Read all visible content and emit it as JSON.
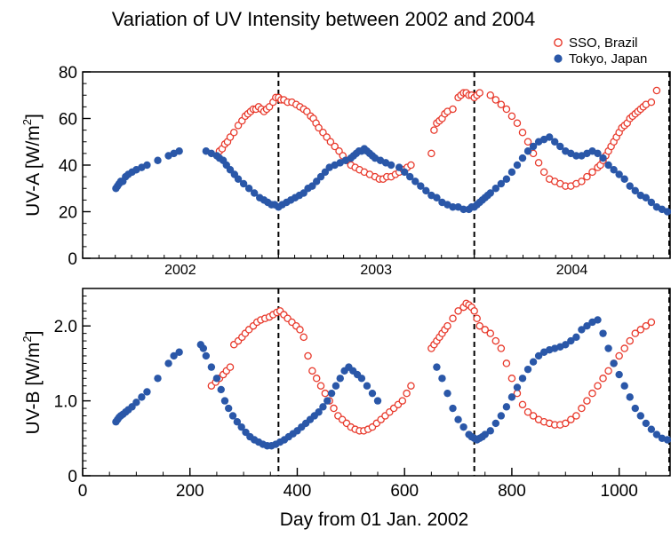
{
  "chart_data": [
    {
      "type": "scatter",
      "title": "Variation of UV Intensity between 2002 and 2004",
      "xlabel": "",
      "ylabel": "UV-A [W/m²]",
      "ylabel_main": "UV-A [W/m",
      "ylabel_sup": "2",
      "ylabel_end": "]",
      "xlim": [
        0,
        1095
      ],
      "ylim": [
        0,
        80
      ],
      "yticks": [
        "0",
        "20",
        "40",
        "60",
        "80"
      ],
      "year_labels": [
        {
          "label": "2002",
          "x": 182
        },
        {
          "label": "2003",
          "x": 547
        },
        {
          "label": "2004",
          "x": 912
        }
      ],
      "vlines": [
        365,
        730
      ],
      "legend": {
        "position": "top-right"
      },
      "grid": false,
      "series": [
        {
          "name": "SSO, Brazil",
          "marker": "open-circle",
          "color": "#e8392b",
          "x": [
            255,
            260,
            265,
            270,
            275,
            282,
            290,
            297,
            303,
            308,
            313,
            318,
            323,
            328,
            333,
            338,
            343,
            348,
            355,
            360,
            365,
            370,
            375,
            382,
            390,
            398,
            405,
            412,
            418,
            425,
            430,
            435,
            440,
            448,
            455,
            462,
            470,
            478,
            485,
            493,
            500,
            508,
            516,
            525,
            535,
            545,
            553,
            560,
            567,
            575,
            583,
            590,
            598,
            605,
            612,
            650,
            655,
            660,
            665,
            670,
            675,
            680,
            690,
            700,
            705,
            710,
            715,
            720,
            725,
            730,
            735,
            740,
            760,
            770,
            780,
            790,
            800,
            810,
            820,
            830,
            840,
            850,
            860,
            870,
            880,
            890,
            900,
            910,
            920,
            930,
            940,
            950,
            960,
            965,
            970,
            975,
            980,
            985,
            990,
            995,
            1000,
            1005,
            1010,
            1015,
            1020,
            1025,
            1030,
            1035,
            1040,
            1045,
            1050,
            1060,
            1070
          ],
          "y": [
            46,
            47,
            49,
            50,
            52,
            54,
            57,
            59,
            61,
            62,
            63,
            64,
            64,
            65,
            64,
            63,
            64,
            65,
            67,
            69,
            69,
            68,
            68,
            67,
            67,
            66,
            65,
            64,
            63,
            61,
            60,
            58,
            56,
            54,
            52,
            50,
            48,
            46,
            44,
            42,
            40,
            39,
            38,
            37,
            36,
            35,
            34,
            34,
            35,
            35,
            36,
            37,
            38,
            39,
            40,
            45,
            55,
            58,
            59,
            60,
            62,
            63,
            64,
            69,
            70,
            71,
            71,
            70,
            70,
            69,
            70,
            71,
            70,
            68,
            66,
            64,
            61,
            58,
            54,
            50,
            45,
            41,
            37,
            34,
            33,
            32,
            31,
            31,
            32,
            33,
            35,
            37,
            39,
            40,
            42,
            44,
            46,
            48,
            50,
            52,
            54,
            56,
            57,
            58,
            60,
            61,
            62,
            63,
            64,
            65,
            66,
            67,
            72
          ]
        },
        {
          "name": "Tokyo, Japan",
          "marker": "filled-circle",
          "color": "#2a57a8",
          "x": [
            62,
            65,
            68,
            71,
            75,
            80,
            85,
            92,
            100,
            110,
            120,
            140,
            160,
            170,
            180,
            230,
            240,
            250,
            255,
            262,
            268,
            275,
            283,
            290,
            300,
            310,
            320,
            330,
            338,
            345,
            352,
            358,
            365,
            372,
            380,
            388,
            396,
            404,
            412,
            420,
            428,
            436,
            444,
            452,
            460,
            470,
            480,
            490,
            500,
            505,
            510,
            515,
            520,
            525,
            530,
            535,
            540,
            545,
            555,
            565,
            575,
            590,
            600,
            610,
            620,
            630,
            640,
            650,
            660,
            670,
            680,
            690,
            700,
            710,
            720,
            725,
            730,
            735,
            740,
            745,
            750,
            755,
            760,
            770,
            780,
            790,
            800,
            810,
            820,
            830,
            840,
            850,
            860,
            870,
            880,
            890,
            900,
            910,
            920,
            930,
            940,
            950,
            960,
            970,
            980,
            990,
            1000,
            1010,
            1020,
            1030,
            1040,
            1050,
            1060,
            1070,
            1080,
            1090
          ],
          "y": [
            30,
            31,
            32,
            33,
            33,
            35,
            36,
            37,
            38,
            39,
            40,
            42,
            44,
            45,
            46,
            46,
            45,
            44,
            43,
            42,
            40,
            38,
            36,
            34,
            32,
            30,
            28,
            26,
            25,
            24,
            23,
            23,
            22,
            23,
            24,
            25,
            26,
            27,
            28,
            30,
            31,
            33,
            35,
            37,
            39,
            40,
            41,
            42,
            43,
            44,
            45,
            46,
            46,
            47,
            46,
            45,
            44,
            43,
            42,
            41,
            40,
            39,
            37,
            35,
            33,
            31,
            29,
            27,
            26,
            24,
            23,
            22,
            22,
            21,
            21,
            22,
            22,
            23,
            24,
            25,
            26,
            27,
            28,
            30,
            32,
            34,
            37,
            40,
            43,
            46,
            48,
            50,
            51,
            52,
            50,
            48,
            46,
            45,
            44,
            44,
            45,
            46,
            45,
            43,
            40,
            38,
            36,
            34,
            31,
            29,
            27,
            26,
            24,
            22,
            21,
            20
          ]
        }
      ]
    },
    {
      "type": "scatter",
      "title": "",
      "xlabel": "Day from 01 Jan. 2002",
      "ylabel": "UV-B [W/m²]",
      "ylabel_main": "UV-B [W/m",
      "ylabel_sup": "2",
      "ylabel_end": "]",
      "xlim": [
        0,
        1095
      ],
      "ylim": [
        0,
        2.5
      ],
      "yticks": [
        "0",
        "1.0",
        "2.0"
      ],
      "xticks": [
        "0",
        "200",
        "400",
        "600",
        "800",
        "1000"
      ],
      "vlines": [
        365,
        730
      ],
      "grid": false,
      "series": [
        {
          "name": "SSO, Brazil",
          "marker": "open-circle",
          "color": "#e8392b",
          "x": [
            240,
            248,
            255,
            262,
            268,
            275,
            282,
            290,
            297,
            303,
            310,
            318,
            325,
            332,
            340,
            348,
            355,
            362,
            368,
            375,
            382,
            390,
            398,
            405,
            412,
            420,
            428,
            436,
            444,
            452,
            460,
            468,
            476,
            484,
            492,
            500,
            508,
            516,
            524,
            532,
            540,
            548,
            556,
            564,
            572,
            580,
            588,
            596,
            604,
            612,
            650,
            655,
            660,
            665,
            670,
            675,
            680,
            690,
            700,
            710,
            715,
            720,
            725,
            730,
            735,
            740,
            750,
            760,
            770,
            780,
            790,
            800,
            810,
            820,
            830,
            840,
            850,
            860,
            870,
            880,
            890,
            900,
            910,
            920,
            930,
            940,
            950,
            960,
            970,
            980,
            990,
            1000,
            1010,
            1020,
            1030,
            1040,
            1050,
            1060
          ],
          "y": [
            1.2,
            1.25,
            1.3,
            1.35,
            1.4,
            1.45,
            1.75,
            1.8,
            1.85,
            1.9,
            1.95,
            2.0,
            2.05,
            2.08,
            2.1,
            2.12,
            2.15,
            2.18,
            2.2,
            2.15,
            2.1,
            2.05,
            2.0,
            1.95,
            1.85,
            1.6,
            1.4,
            1.3,
            1.2,
            1.1,
            1.0,
            0.9,
            0.8,
            0.75,
            0.7,
            0.65,
            0.62,
            0.6,
            0.6,
            0.62,
            0.65,
            0.7,
            0.75,
            0.8,
            0.85,
            0.9,
            0.95,
            1.0,
            1.1,
            1.2,
            1.7,
            1.75,
            1.8,
            1.85,
            1.9,
            1.95,
            2.0,
            2.1,
            2.2,
            2.25,
            2.3,
            2.28,
            2.25,
            2.2,
            2.1,
            2.0,
            1.95,
            1.9,
            1.8,
            1.7,
            1.5,
            1.3,
            1.1,
            0.95,
            0.85,
            0.8,
            0.75,
            0.72,
            0.7,
            0.68,
            0.68,
            0.7,
            0.75,
            0.8,
            0.9,
            1.0,
            1.1,
            1.2,
            1.3,
            1.4,
            1.5,
            1.6,
            1.7,
            1.8,
            1.9,
            1.95,
            2.0,
            2.05
          ]
        },
        {
          "name": "Tokyo, Japan",
          "marker": "filled-circle",
          "color": "#2a57a8",
          "x": [
            62,
            65,
            68,
            71,
            75,
            80,
            85,
            92,
            100,
            110,
            120,
            140,
            160,
            170,
            180,
            220,
            225,
            230,
            240,
            250,
            258,
            265,
            272,
            280,
            288,
            296,
            304,
            312,
            320,
            328,
            336,
            344,
            352,
            360,
            368,
            376,
            384,
            392,
            400,
            408,
            416,
            424,
            432,
            440,
            448,
            456,
            464,
            472,
            480,
            488,
            496,
            504,
            512,
            520,
            530,
            540,
            550,
            660,
            670,
            680,
            690,
            700,
            710,
            720,
            725,
            730,
            735,
            740,
            745,
            750,
            760,
            770,
            780,
            790,
            800,
            810,
            820,
            830,
            840,
            850,
            860,
            870,
            880,
            890,
            900,
            910,
            920,
            930,
            940,
            950,
            960,
            970,
            980,
            990,
            1000,
            1010,
            1020,
            1030,
            1040,
            1050,
            1060,
            1070,
            1080,
            1090
          ],
          "y": [
            0.72,
            0.75,
            0.78,
            0.8,
            0.82,
            0.85,
            0.88,
            0.92,
            0.98,
            1.05,
            1.12,
            1.3,
            1.5,
            1.6,
            1.65,
            1.75,
            1.7,
            1.6,
            1.45,
            1.3,
            1.15,
            1.0,
            0.9,
            0.8,
            0.72,
            0.65,
            0.58,
            0.52,
            0.48,
            0.45,
            0.42,
            0.4,
            0.4,
            0.42,
            0.45,
            0.48,
            0.52,
            0.56,
            0.6,
            0.65,
            0.7,
            0.75,
            0.8,
            0.85,
            0.92,
            1.0,
            1.1,
            1.2,
            1.3,
            1.4,
            1.45,
            1.4,
            1.35,
            1.3,
            1.2,
            1.1,
            1.0,
            1.45,
            1.3,
            1.1,
            0.9,
            0.75,
            0.65,
            0.55,
            0.52,
            0.5,
            0.48,
            0.5,
            0.52,
            0.55,
            0.6,
            0.7,
            0.8,
            0.92,
            1.05,
            1.18,
            1.3,
            1.42,
            1.52,
            1.6,
            1.65,
            1.68,
            1.7,
            1.72,
            1.75,
            1.8,
            1.85,
            1.95,
            2.0,
            2.05,
            2.08,
            1.9,
            1.7,
            1.5,
            1.35,
            1.2,
            1.05,
            0.9,
            0.8,
            0.7,
            0.62,
            0.55,
            0.5,
            0.48
          ]
        }
      ]
    }
  ]
}
